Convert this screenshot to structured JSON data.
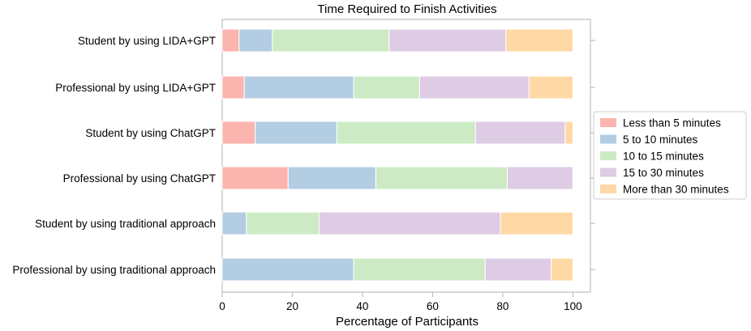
{
  "chart_data": {
    "type": "bar",
    "orientation": "horizontal",
    "stacked": true,
    "title": "Time Required to Finish Activities",
    "xlabel": "Percentage of Participants",
    "ylabel": "",
    "xlim": [
      0,
      105
    ],
    "xticks": [
      "0",
      "20",
      "40",
      "60",
      "80",
      "100"
    ],
    "grid": false,
    "legend_position": "right",
    "categories": [
      "Student by using LIDA+GPT",
      "Professional by using LIDA+GPT",
      "Student by using ChatGPT",
      "Professional by using ChatGPT",
      "Student by using traditional approach",
      "Professional by using traditional approach"
    ],
    "series": [
      {
        "name": "Less than 5 minutes",
        "color": "#fbb4ae",
        "values": [
          4.8,
          6.3,
          9.4,
          18.8,
          0,
          0
        ]
      },
      {
        "name": "5 to 10 minutes",
        "color": "#b3cde3",
        "values": [
          9.5,
          31.2,
          23.3,
          25.0,
          6.9,
          37.5
        ]
      },
      {
        "name": "10 to 15 minutes",
        "color": "#ccebc5",
        "values": [
          33.3,
          18.8,
          39.5,
          37.5,
          20.7,
          37.5
        ]
      },
      {
        "name": "15 to 30 minutes",
        "color": "#decbe4",
        "values": [
          33.3,
          31.2,
          25.6,
          18.7,
          51.7,
          18.8
        ]
      },
      {
        "name": "More than 30 minutes",
        "color": "#fed9a6",
        "values": [
          19.1,
          12.5,
          2.2,
          0,
          20.7,
          6.2
        ]
      }
    ]
  }
}
